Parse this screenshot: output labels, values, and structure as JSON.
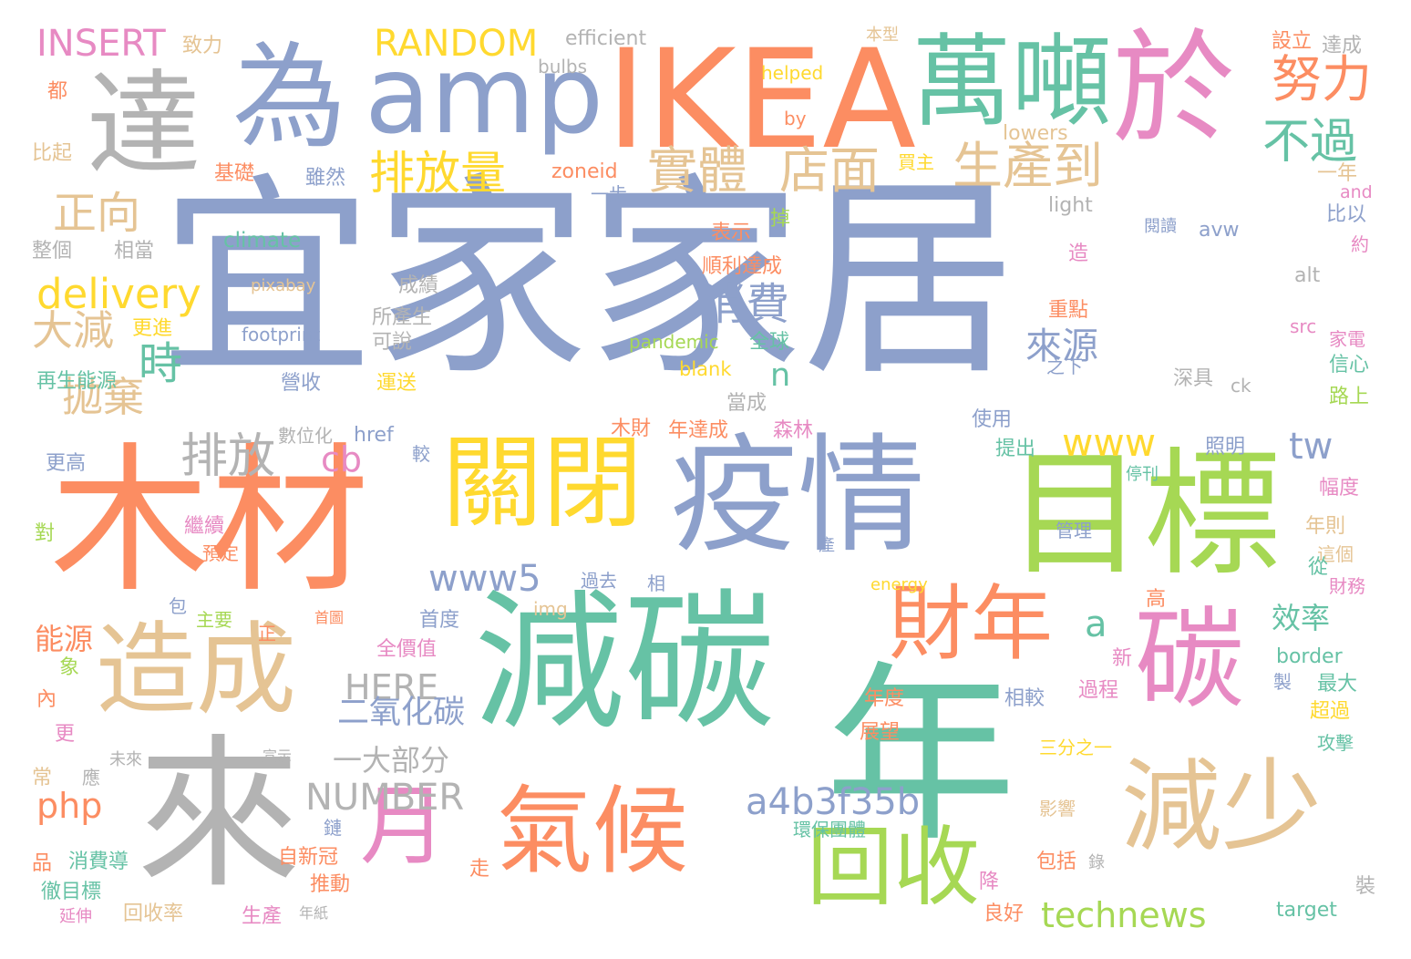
{
  "palette": {
    "blue": "#8da0cb",
    "orange": "#fc8d62",
    "green": "#66c2a5",
    "pink": "#e78ac3",
    "lime": "#a6d854",
    "yellow": "#ffd92f",
    "tan": "#e5c494",
    "gray": "#b3b3b3"
  },
  "words": [
    {
      "text": "宜家家居",
      "color": "blue"
    },
    {
      "text": "木材",
      "color": "orange"
    },
    {
      "text": "減碳",
      "color": "green"
    },
    {
      "text": "年",
      "color": "green"
    },
    {
      "text": "來",
      "color": "gray"
    },
    {
      "text": "疫情",
      "color": "blue"
    },
    {
      "text": "目標",
      "color": "lime"
    },
    {
      "text": "IKEA",
      "color": "orange"
    },
    {
      "text": "於",
      "color": "pink"
    },
    {
      "text": "達",
      "color": "gray"
    },
    {
      "text": "為",
      "color": "blue"
    },
    {
      "text": "amp",
      "color": "blue"
    },
    {
      "text": "萬噸",
      "color": "green"
    },
    {
      "text": "關閉",
      "color": "yellow"
    },
    {
      "text": "造成",
      "color": "tan"
    },
    {
      "text": "氣候",
      "color": "orange"
    },
    {
      "text": "碳",
      "color": "pink"
    },
    {
      "text": "減少",
      "color": "tan"
    },
    {
      "text": "月",
      "color": "pink"
    },
    {
      "text": "回收",
      "color": "lime"
    },
    {
      "text": "財年",
      "color": "orange"
    },
    {
      "text": "努力",
      "color": "orange"
    },
    {
      "text": "不過",
      "color": "green"
    },
    {
      "text": "實體",
      "color": "tan"
    },
    {
      "text": "店面",
      "color": "tan"
    },
    {
      "text": "生產到",
      "color": "tan"
    },
    {
      "text": "排放量",
      "color": "yellow"
    },
    {
      "text": "正向",
      "color": "tan"
    },
    {
      "text": "delivery",
      "color": "yellow"
    },
    {
      "text": "大減",
      "color": "tan"
    },
    {
      "text": "時",
      "color": "green"
    },
    {
      "text": "拋棄",
      "color": "tan"
    },
    {
      "text": "排放",
      "color": "gray"
    },
    {
      "text": "消費",
      "color": "blue"
    },
    {
      "text": "來源",
      "color": "blue"
    },
    {
      "text": "www",
      "color": "yellow"
    },
    {
      "text": "tw",
      "color": "blue"
    },
    {
      "text": "www5",
      "color": "blue"
    },
    {
      "text": "cb",
      "color": "pink"
    },
    {
      "text": "a",
      "color": "green"
    },
    {
      "text": "HERE",
      "color": "gray"
    },
    {
      "text": "二氧化碳",
      "color": "blue"
    },
    {
      "text": "一大部分",
      "color": "gray"
    },
    {
      "text": "NUMBER",
      "color": "gray"
    },
    {
      "text": "a4b3f35b",
      "color": "blue"
    },
    {
      "text": "php",
      "color": "orange"
    },
    {
      "text": "technews",
      "color": "lime"
    },
    {
      "text": "INSERT",
      "color": "pink"
    },
    {
      "text": "RANDOM",
      "color": "yellow"
    },
    {
      "text": "n",
      "color": "green"
    },
    {
      "text": "能源",
      "color": "orange"
    },
    {
      "text": "效率",
      "color": "green"
    },
    {
      "text": "efficient",
      "color": "gray"
    },
    {
      "text": "bulbs",
      "color": "gray"
    },
    {
      "text": "helped",
      "color": "yellow"
    },
    {
      "text": "by",
      "color": "orange"
    },
    {
      "text": "lowers",
      "color": "tan"
    },
    {
      "text": "zoneid",
      "color": "orange"
    },
    {
      "text": "climate",
      "color": "green"
    },
    {
      "text": "pixabay",
      "color": "tan"
    },
    {
      "text": "footprint",
      "color": "blue"
    },
    {
      "text": "pandemic",
      "color": "lime"
    },
    {
      "text": "blank",
      "color": "yellow"
    },
    {
      "text": "href",
      "color": "blue"
    },
    {
      "text": "img",
      "color": "tan"
    },
    {
      "text": "energy",
      "color": "yellow"
    },
    {
      "text": "light",
      "color": "gray"
    },
    {
      "text": "and",
      "color": "pink"
    },
    {
      "text": "avw",
      "color": "blue"
    },
    {
      "text": "alt",
      "color": "gray"
    },
    {
      "text": "src",
      "color": "pink"
    },
    {
      "text": "ck",
      "color": "gray"
    },
    {
      "text": "border",
      "color": "green"
    },
    {
      "text": "target",
      "color": "green"
    },
    {
      "text": "致力",
      "color": "tan"
    },
    {
      "text": "本型",
      "color": "tan"
    },
    {
      "text": "設立",
      "color": "orange"
    },
    {
      "text": "達成",
      "color": "gray"
    },
    {
      "text": "都",
      "color": "orange"
    },
    {
      "text": "比起",
      "color": "tan"
    },
    {
      "text": "基礎",
      "color": "orange"
    },
    {
      "text": "雖然",
      "color": "blue"
    },
    {
      "text": "一步",
      "color": "blue"
    },
    {
      "text": "買主",
      "color": "yellow"
    },
    {
      "text": "一年",
      "color": "tan"
    },
    {
      "text": "比以",
      "color": "blue"
    },
    {
      "text": "約",
      "color": "pink"
    },
    {
      "text": "掉",
      "color": "lime"
    },
    {
      "text": "整個",
      "color": "gray"
    },
    {
      "text": "相當",
      "color": "gray"
    },
    {
      "text": "表示",
      "color": "orange"
    },
    {
      "text": "閱讀",
      "color": "blue"
    },
    {
      "text": "造",
      "color": "pink"
    },
    {
      "text": "順利達成",
      "color": "orange"
    },
    {
      "text": "成績",
      "color": "gray"
    },
    {
      "text": "所產生",
      "color": "gray"
    },
    {
      "text": "可說",
      "color": "gray"
    },
    {
      "text": "更進",
      "color": "yellow"
    },
    {
      "text": "再生能源",
      "color": "green"
    },
    {
      "text": "營收",
      "color": "blue"
    },
    {
      "text": "運送",
      "color": "yellow"
    },
    {
      "text": "全球",
      "color": "green"
    },
    {
      "text": "重點",
      "color": "orange"
    },
    {
      "text": "家電",
      "color": "pink"
    },
    {
      "text": "信心",
      "color": "green"
    },
    {
      "text": "之下",
      "color": "blue"
    },
    {
      "text": "深具",
      "color": "gray"
    },
    {
      "text": "路上",
      "color": "lime"
    },
    {
      "text": "當成",
      "color": "gray"
    },
    {
      "text": "數位化",
      "color": "gray"
    },
    {
      "text": "木財",
      "color": "orange"
    },
    {
      "text": "年達成",
      "color": "orange"
    },
    {
      "text": "森林",
      "color": "pink"
    },
    {
      "text": "使用",
      "color": "blue"
    },
    {
      "text": "更高",
      "color": "blue"
    },
    {
      "text": "較",
      "color": "blue"
    },
    {
      "text": "提出",
      "color": "green"
    },
    {
      "text": "照明",
      "color": "blue"
    },
    {
      "text": "停刊",
      "color": "green"
    },
    {
      "text": "幅度",
      "color": "pink"
    },
    {
      "text": "對",
      "color": "lime"
    },
    {
      "text": "繼續",
      "color": "pink"
    },
    {
      "text": "預定",
      "color": "orange"
    },
    {
      "text": "管理",
      "color": "blue"
    },
    {
      "text": "年則",
      "color": "tan"
    },
    {
      "text": "這個",
      "color": "tan"
    },
    {
      "text": "過去",
      "color": "blue"
    },
    {
      "text": "相",
      "color": "blue"
    },
    {
      "text": "產",
      "color": "blue"
    },
    {
      "text": "從",
      "color": "green"
    },
    {
      "text": "財務",
      "color": "pink"
    },
    {
      "text": "包",
      "color": "blue"
    },
    {
      "text": "主要",
      "color": "lime"
    },
    {
      "text": "正",
      "color": "orange"
    },
    {
      "text": "首圖",
      "color": "orange"
    },
    {
      "text": "首度",
      "color": "blue"
    },
    {
      "text": "高",
      "color": "orange"
    },
    {
      "text": "象",
      "color": "lime"
    },
    {
      "text": "全價值",
      "color": "pink"
    },
    {
      "text": "新",
      "color": "pink"
    },
    {
      "text": "製",
      "color": "blue"
    },
    {
      "text": "最大",
      "color": "green"
    },
    {
      "text": "內",
      "color": "orange"
    },
    {
      "text": "年度",
      "color": "orange"
    },
    {
      "text": "相較",
      "color": "blue"
    },
    {
      "text": "過程",
      "color": "pink"
    },
    {
      "text": "超過",
      "color": "yellow"
    },
    {
      "text": "更",
      "color": "pink"
    },
    {
      "text": "未來",
      "color": "gray"
    },
    {
      "text": "宣示",
      "color": "gray"
    },
    {
      "text": "展望",
      "color": "orange"
    },
    {
      "text": "三分之一",
      "color": "yellow"
    },
    {
      "text": "攻擊",
      "color": "green"
    },
    {
      "text": "常",
      "color": "tan"
    },
    {
      "text": "應",
      "color": "gray"
    },
    {
      "text": "影響",
      "color": "tan"
    },
    {
      "text": "鏈",
      "color": "blue"
    },
    {
      "text": "環保團體",
      "color": "green"
    },
    {
      "text": "品",
      "color": "orange"
    },
    {
      "text": "消費導",
      "color": "green"
    },
    {
      "text": "自新冠",
      "color": "orange"
    },
    {
      "text": "走",
      "color": "orange"
    },
    {
      "text": "包括",
      "color": "orange"
    },
    {
      "text": "錄",
      "color": "gray"
    },
    {
      "text": "徹目標",
      "color": "green"
    },
    {
      "text": "推動",
      "color": "orange"
    },
    {
      "text": "降",
      "color": "pink"
    },
    {
      "text": "裝",
      "color": "gray"
    },
    {
      "text": "延伸",
      "color": "pink"
    },
    {
      "text": "回收率",
      "color": "tan"
    },
    {
      "text": "年紙",
      "color": "gray"
    },
    {
      "text": "生產",
      "color": "pink"
    },
    {
      "text": "良好",
      "color": "orange"
    }
  ]
}
